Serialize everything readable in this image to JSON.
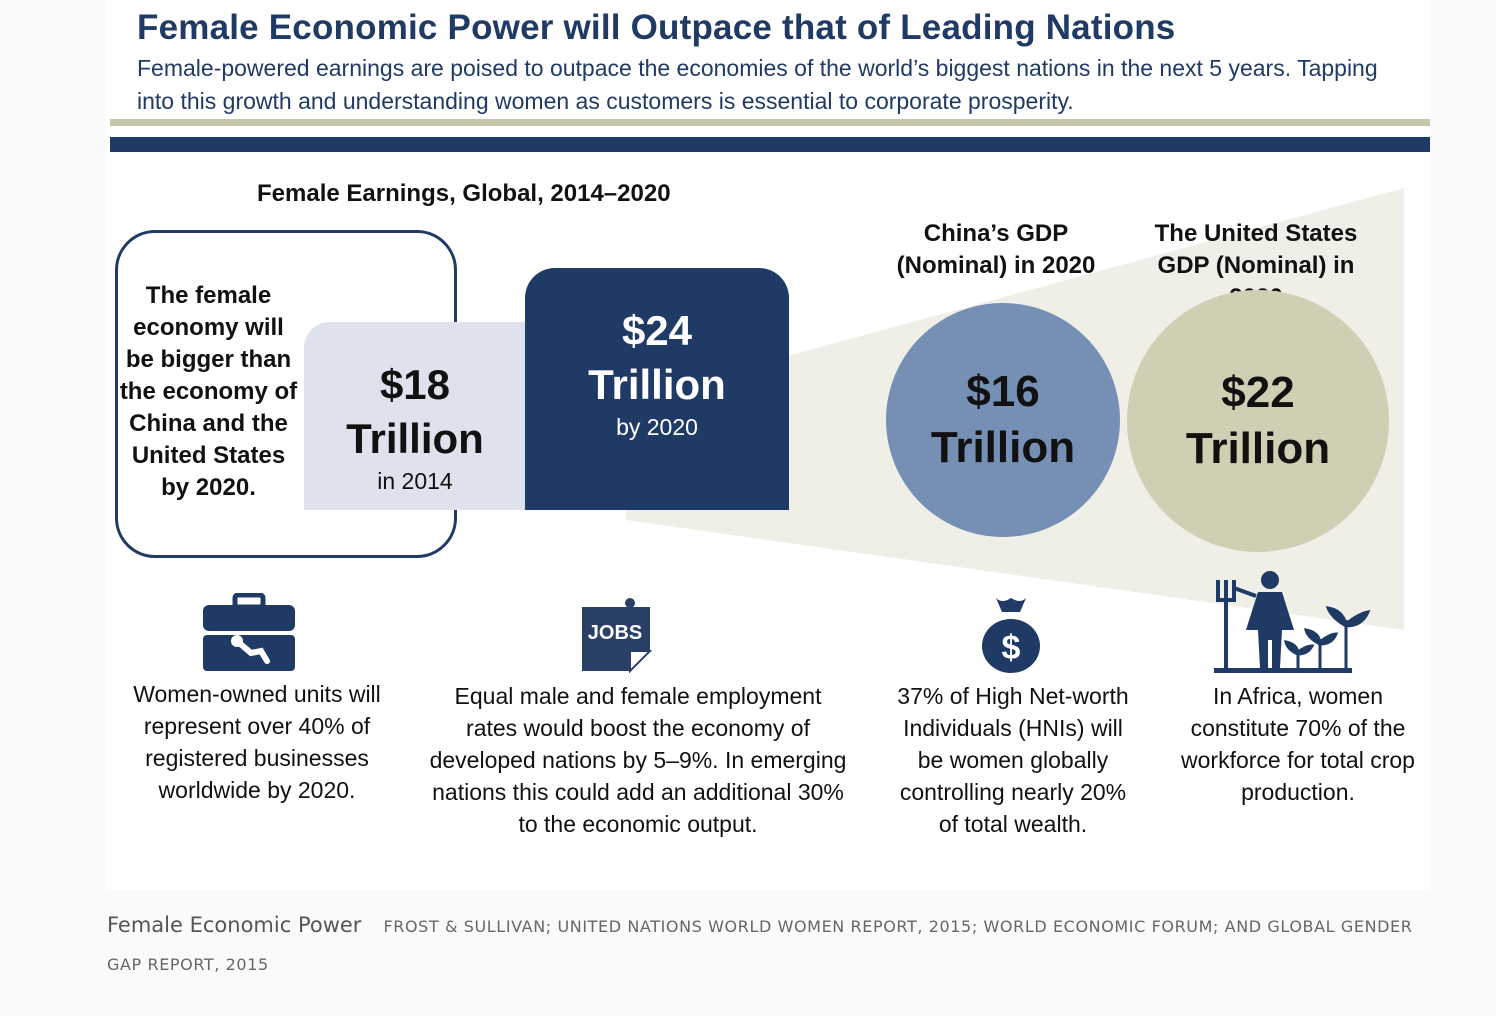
{
  "header": {
    "title": "Female Economic Power will Outpace that of Leading Nations",
    "subtitle": "Female-powered earnings are poised to outpace the economies of the world’s biggest nations in the next 5 years. Tapping into this growth and understanding  women as customers is essential to corporate prosperity."
  },
  "earnings": {
    "title": "Female Earnings, Global, 2014–2020",
    "callout": "The female economy will be bigger than the economy of China and the United States by 2020.",
    "box_2014": {
      "amount": "$18",
      "unit": "Trillion",
      "note": "in 2014",
      "value": 18
    },
    "box_2020": {
      "amount": "$24",
      "unit": "Trillion",
      "note": "by 2020",
      "value": 24
    }
  },
  "comparisons": {
    "china": {
      "heading": "China’s GDP (Nominal) in 2020",
      "amount": "$16",
      "unit": "Trillion",
      "value": 16
    },
    "us": {
      "heading": "The United States GDP (Nominal) in 2020",
      "amount": "$22",
      "unit": "Trillion",
      "value": 22
    }
  },
  "stats": [
    {
      "icon": "toolbox-icon",
      "text": "Women-owned units will represent over 40% of registered businesses worldwide by 2020."
    },
    {
      "icon": "jobs-icon",
      "text": "Equal male and female employment rates would boost the economy of developed nations by 5–9%.  In emerging nations this could add an additional 30% to the economic output."
    },
    {
      "icon": "money-bag-icon",
      "text": "37% of High Net-worth Individuals (HNIs) will be women globally controlling nearly 20% of total wealth."
    },
    {
      "icon": "farmer-woman-icon",
      "text": "In Africa, women constitute 70% of the workforce for total crop production."
    }
  ],
  "icon_labels": {
    "jobs": "JOBS",
    "dollar": "$"
  },
  "caption": {
    "title": "Female Economic Power",
    "credit": "FROST & SULLIVAN; UNITED NATIONS WORLD WOMEN REPORT, 2015; WORLD ECONOMIC FORUM; AND GLOBAL GENDER GAP REPORT, 2015"
  },
  "colors": {
    "navy": "#1f3a64",
    "steel_blue": "#7590b4",
    "tan": "#d1cfb3",
    "light_gray_blue": "#dde2ec",
    "cone": "#efefe7"
  }
}
